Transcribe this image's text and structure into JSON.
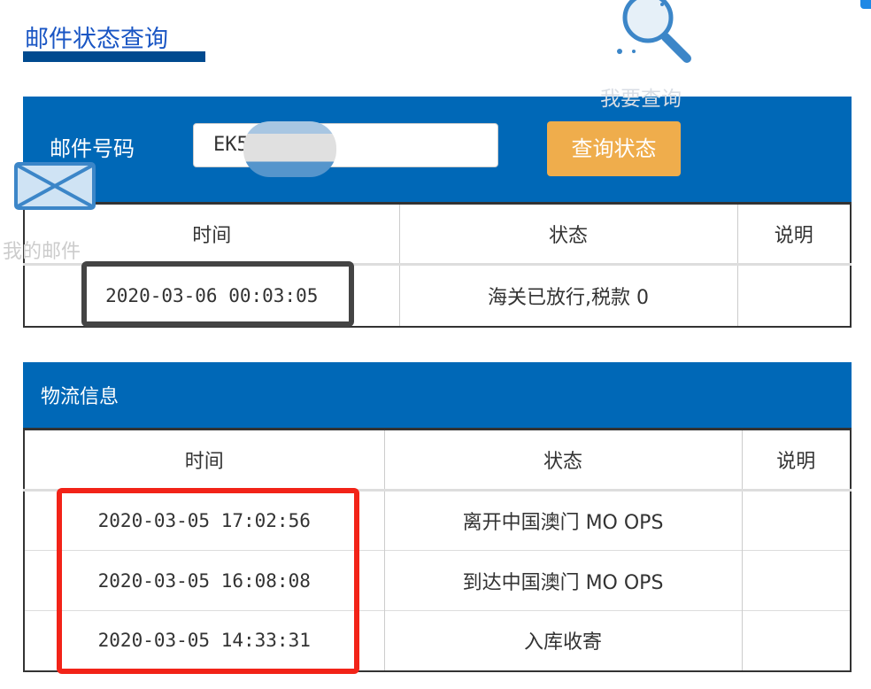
{
  "page_title": "邮件状态查询",
  "shortcuts": {
    "search_label": "我要查询",
    "mail_label": "我的邮件",
    "search_icon": "magnifier-icon",
    "mail_icon": "envelope-icon"
  },
  "query": {
    "label": "邮件号码",
    "value": "EK5          7MO",
    "button": "查询状态"
  },
  "status_table": {
    "headers": [
      "时间",
      "状态",
      "说明"
    ],
    "rows": [
      [
        "2020-03-06 00:03:05",
        "海关已放行,税款 0",
        ""
      ]
    ]
  },
  "logistics": {
    "title": "物流信息",
    "headers": [
      "时间",
      "状态",
      "说明"
    ],
    "rows": [
      [
        "2020-03-05 17:02:56",
        "离开中国澳门 MO OPS",
        ""
      ],
      [
        "2020-03-05 16:08:08",
        "到达中国澳门 MO OPS",
        ""
      ],
      [
        "2020-03-05 14:33:31",
        "入库收寄",
        ""
      ]
    ]
  },
  "colors": {
    "brand_blue": "#0068b7",
    "button_orange": "#efad4c",
    "highlight_red": "#f22318"
  }
}
